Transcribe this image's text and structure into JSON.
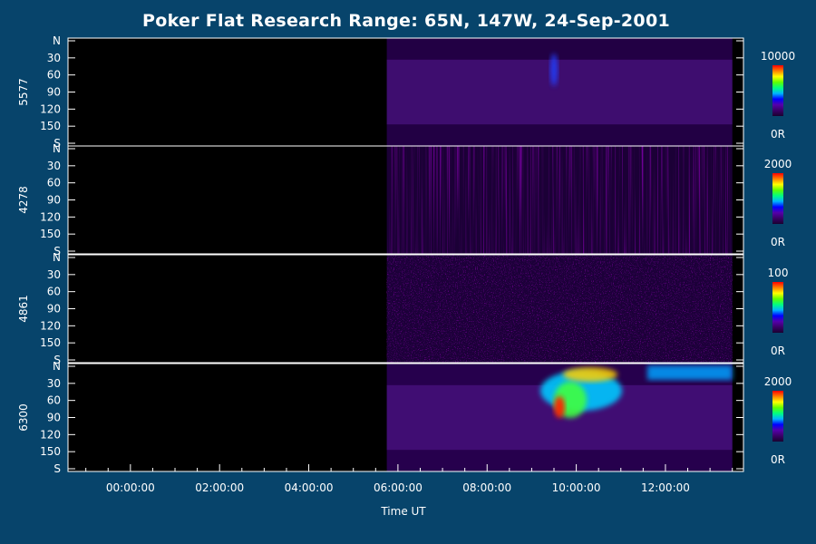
{
  "chart_data": {
    "type": "heatmap",
    "title": "Poker Flat Research Range: 65N, 147W, 24-Sep-2001",
    "xlabel": "Time UT",
    "x_tick_labels": [
      "00:00:00",
      "02:00:00",
      "04:00:00",
      "06:00:00",
      "08:00:00",
      "10:00:00",
      "12:00:00"
    ],
    "y_tick_labels": [
      "N",
      "30",
      "60",
      "90",
      "120",
      "150",
      "S"
    ],
    "data_start_time": "05:45:00",
    "colors": {
      "background": "#07446b",
      "plot_background": "#000000",
      "axis": "#ffffff",
      "colorscale": [
        "#1a0030",
        "#3a0066",
        "#5500aa",
        "#0000ff",
        "#00b4ff",
        "#00ff80",
        "#60ff00",
        "#ffff00",
        "#ff8000",
        "#ff0000"
      ]
    },
    "panels": [
      {
        "ylabel": "5577",
        "colorbar_max": "10000",
        "colorbar_min": "0R",
        "data_end_time": "13:30:00",
        "texture": "smooth",
        "intensity": 0.35
      },
      {
        "ylabel": "4278",
        "colorbar_max": "2000",
        "colorbar_min": "0R",
        "data_end_time": "13:30:00",
        "texture": "streaky",
        "intensity": 0.18
      },
      {
        "ylabel": "4861",
        "colorbar_max": "100",
        "colorbar_min": "0R",
        "data_end_time": "13:30:00",
        "texture": "speckle",
        "intensity": 0.22
      },
      {
        "ylabel": "6300",
        "colorbar_max": "2000",
        "colorbar_min": "0R",
        "data_end_time": "13:30:00",
        "texture": "smooth",
        "intensity": 0.45
      }
    ]
  }
}
